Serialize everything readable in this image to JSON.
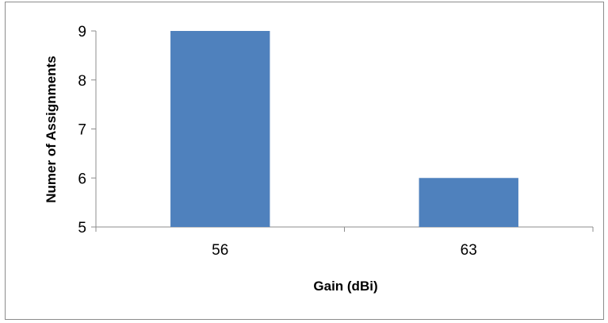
{
  "chart_data": {
    "type": "bar",
    "title": "",
    "xlabel": "Gain (dBi)",
    "ylabel": "Numer of Assignments",
    "categories": [
      "56",
      "63"
    ],
    "values": [
      9,
      6
    ],
    "ylim": [
      5,
      9
    ],
    "yticks": [
      "5",
      "6",
      "7",
      "8",
      "9"
    ],
    "grid": false,
    "legend": "none",
    "bar_color": "#4f81bd"
  }
}
